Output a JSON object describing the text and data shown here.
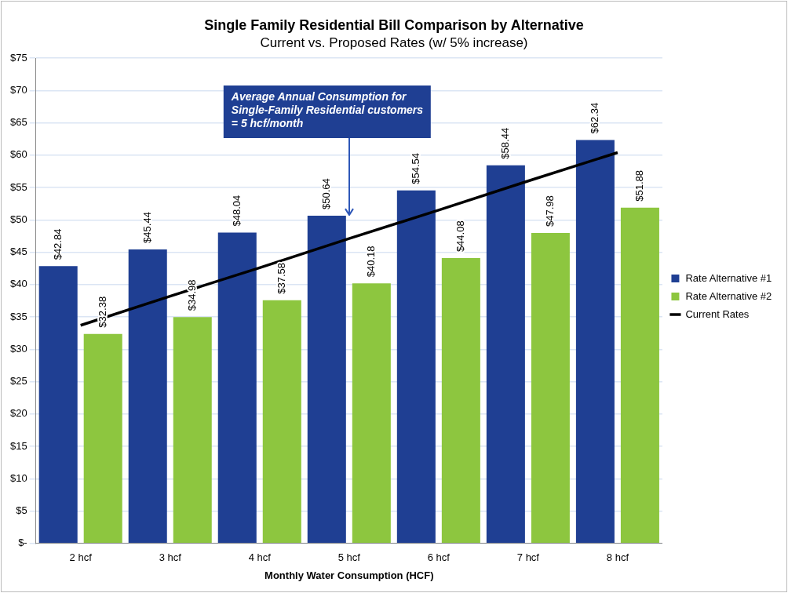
{
  "chart_data": {
    "type": "bar",
    "title": "Single Family Residential Bill Comparison by Alternative",
    "subtitle": "Current vs. Proposed Rates (w/ 5% increase)",
    "xlabel": "Monthly Water Consumption (HCF)",
    "categories": [
      "2 hcf",
      "3 hcf",
      "4 hcf",
      "5 hcf",
      "6 hcf",
      "7 hcf",
      "8 hcf"
    ],
    "series": [
      {
        "name": "Rate Alternative #1",
        "color": "#1f3f93",
        "values": [
          42.84,
          45.44,
          48.04,
          50.64,
          54.54,
          58.44,
          62.34
        ],
        "value_labels": [
          "$42.84",
          "$45.44",
          "$48.04",
          "$50.64",
          "$54.54",
          "$58.44",
          "$62.34"
        ]
      },
      {
        "name": "Rate Alternative #2",
        "color": "#8dc63f",
        "values": [
          32.38,
          34.98,
          37.58,
          40.18,
          44.08,
          47.98,
          51.88
        ],
        "value_labels": [
          "$32.38",
          "$34.98",
          "$37.58",
          "$40.18",
          "$44.08",
          "$47.98",
          "$51.88"
        ]
      },
      {
        "name": "Current Rates",
        "type": "line",
        "color": "#000000",
        "values": [
          33.7,
          38.2,
          42.6,
          47.1,
          51.5,
          56.0,
          60.4
        ],
        "marker": "none"
      }
    ],
    "ylim": [
      0,
      75
    ],
    "yticks": [
      {
        "value": 0,
        "label": "$-"
      },
      {
        "value": 5,
        "label": "$5"
      },
      {
        "value": 10,
        "label": "$10"
      },
      {
        "value": 15,
        "label": "$15"
      },
      {
        "value": 20,
        "label": "$20"
      },
      {
        "value": 25,
        "label": "$25"
      },
      {
        "value": 30,
        "label": "$30"
      },
      {
        "value": 35,
        "label": "$35"
      },
      {
        "value": 40,
        "label": "$40"
      },
      {
        "value": 45,
        "label": "$45"
      },
      {
        "value": 50,
        "label": "$50"
      },
      {
        "value": 55,
        "label": "$55"
      },
      {
        "value": 60,
        "label": "$60"
      },
      {
        "value": 65,
        "label": "$65"
      },
      {
        "value": 70,
        "label": "$70"
      },
      {
        "value": 75,
        "label": "$75"
      }
    ],
    "grid": "y",
    "legend": "right",
    "annotations": [
      "Average Annual Consumption for Single-Family Residential customers = 5 hcf/month"
    ]
  }
}
